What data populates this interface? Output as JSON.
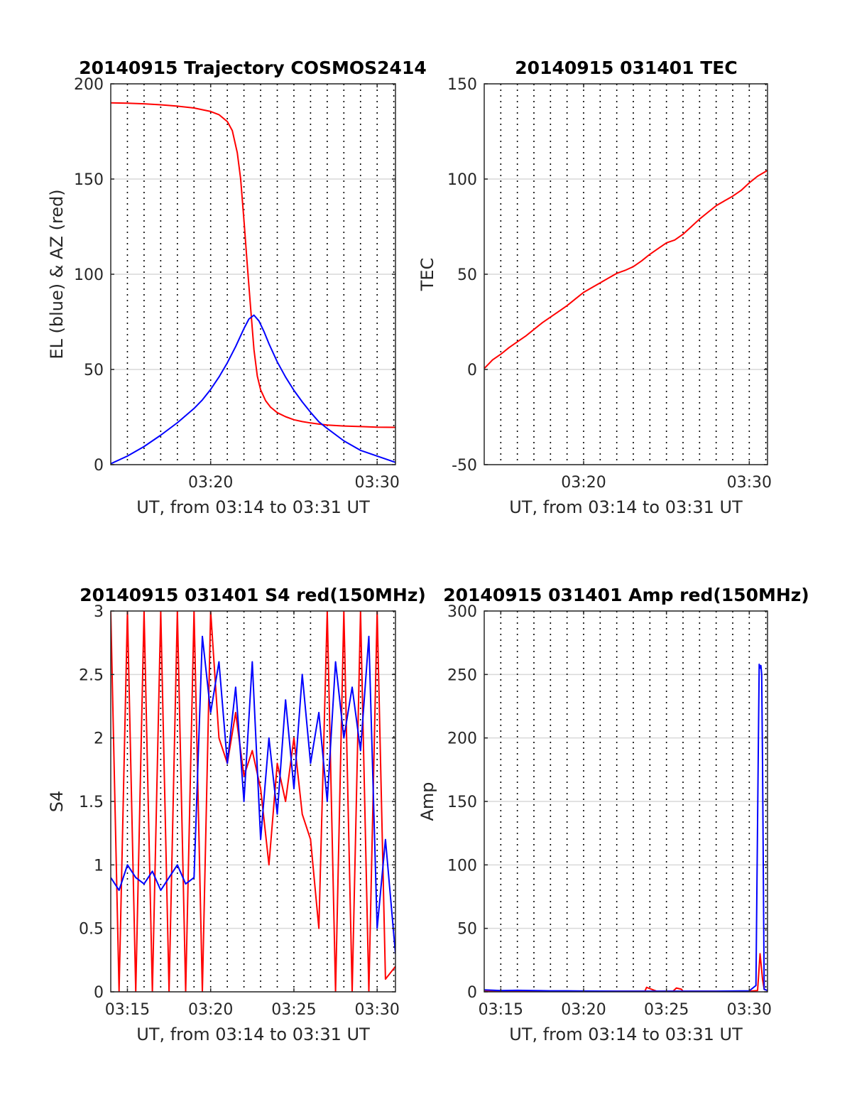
{
  "colors": {
    "red": "#ff0000",
    "blue": "#0000ff",
    "grid": "#d9d9d9",
    "axis": "#262626"
  },
  "chart_data": [
    {
      "type": "line",
      "title": "20140915 Trajectory COSMOS2414",
      "xlabel": "UT, from 03:14 to 03:31 UT",
      "ylabel": "EL (blue) & AZ (red)",
      "xlim": [
        14,
        31.1
      ],
      "ylim": [
        0,
        200
      ],
      "xticks": [
        20,
        30
      ],
      "xtick_labels": [
        "03:20",
        "03:30"
      ],
      "yticks": [
        0,
        50,
        100,
        150,
        200
      ],
      "ytick_labels": [
        "0",
        "50",
        "100",
        "150",
        "200"
      ],
      "grid": "horizontal solid, vertical dotted every 1 min",
      "series": [
        {
          "color": "red",
          "x": [
            14.0,
            15.0,
            16.0,
            17.0,
            18.0,
            19.0,
            20.0,
            20.5,
            21.0,
            21.3,
            21.6,
            21.8,
            22.0,
            22.2,
            22.4,
            22.6,
            22.8,
            23.0,
            23.3,
            23.6,
            24.0,
            24.5,
            25.0,
            25.5,
            26.0,
            26.5,
            27.0,
            28.0,
            29.0,
            30.0,
            31.1
          ],
          "y": [
            190.0,
            189.8,
            189.5,
            189.0,
            188.3,
            187.3,
            185.5,
            183.8,
            180.2,
            175.4,
            163.8,
            150.2,
            128.4,
            104.8,
            82.3,
            60.4,
            46.5,
            39.3,
            33.6,
            30.2,
            27.3,
            25.2,
            23.6,
            22.6,
            21.9,
            21.3,
            20.8,
            20.3,
            20.0,
            19.7,
            19.6
          ]
        },
        {
          "color": "blue",
          "x": [
            14.0,
            15.0,
            16.0,
            17.0,
            18.0,
            19.0,
            19.5,
            20.0,
            20.5,
            21.0,
            21.5,
            22.0,
            22.3,
            22.6,
            22.9,
            23.2,
            23.5,
            24.0,
            24.5,
            25.0,
            25.5,
            26.0,
            26.5,
            27.0,
            28.0,
            29.0,
            30.0,
            31.1
          ],
          "y": [
            0.5,
            4.5,
            9.5,
            15.5,
            22.0,
            29.5,
            34.0,
            39.5,
            46.0,
            53.5,
            62.0,
            71.5,
            76.5,
            78.5,
            75.5,
            70.0,
            63.5,
            54.0,
            46.0,
            39.0,
            33.0,
            27.5,
            22.5,
            19.0,
            12.5,
            7.5,
            4.5,
            1.2
          ]
        }
      ]
    },
    {
      "type": "line",
      "title": "20140915 031401 TEC",
      "xlabel": "UT, from 03:14 to 03:31 UT",
      "ylabel": "TEC",
      "xlim": [
        14,
        31.1
      ],
      "ylim": [
        -50,
        150
      ],
      "xticks": [
        20,
        30
      ],
      "xtick_labels": [
        "03:20",
        "03:30"
      ],
      "yticks": [
        -50,
        0,
        50,
        100,
        150
      ],
      "ytick_labels": [
        "-50",
        "0",
        "50",
        "100",
        "150"
      ],
      "grid": "horizontal solid, vertical dotted every 1 min",
      "series": [
        {
          "color": "red",
          "x": [
            14.0,
            14.5,
            15.0,
            15.5,
            16.0,
            16.5,
            17.0,
            17.5,
            18.0,
            18.5,
            19.0,
            19.5,
            20.0,
            20.5,
            21.0,
            21.5,
            22.0,
            22.5,
            23.0,
            23.5,
            24.0,
            24.5,
            25.0,
            25.5,
            26.0,
            26.5,
            27.0,
            27.5,
            28.0,
            28.5,
            29.0,
            29.5,
            30.0,
            30.5,
            31.1
          ],
          "y": [
            0.5,
            5.0,
            8.0,
            11.5,
            14.5,
            17.5,
            21.0,
            24.5,
            27.5,
            30.5,
            33.5,
            37.0,
            40.5,
            43.0,
            45.5,
            48.0,
            50.5,
            52.0,
            54.0,
            57.0,
            60.5,
            63.5,
            66.5,
            68.0,
            71.0,
            75.0,
            79.0,
            82.5,
            86.0,
            88.5,
            91.0,
            94.0,
            98.0,
            101.5,
            104.5
          ]
        }
      ]
    },
    {
      "type": "line",
      "title": "20140915 031401 S4 red(150MHz)",
      "xlabel": "UT, from 03:14 to 03:31 UT",
      "ylabel": "S4",
      "xlim": [
        14,
        31.1
      ],
      "ylim": [
        0,
        3
      ],
      "xticks": [
        15,
        20,
        25,
        30
      ],
      "xtick_labels": [
        "03:15",
        "03:20",
        "03:25",
        "03:30"
      ],
      "yticks": [
        0,
        0.5,
        1,
        1.5,
        2,
        2.5,
        3
      ],
      "ytick_labels": [
        "0",
        "0.5",
        "1",
        "1.5",
        "2",
        "2.5",
        "3"
      ],
      "grid": "horizontal solid, vertical dotted every 1 min",
      "series": [
        {
          "color": "red",
          "x": [
            14.0,
            14.5,
            15.0,
            15.5,
            16.0,
            16.5,
            17.0,
            17.5,
            18.0,
            18.5,
            19.0,
            19.5,
            20.0,
            20.5,
            21.0,
            21.5,
            22.0,
            22.5,
            23.0,
            23.5,
            24.0,
            24.5,
            25.0,
            25.5,
            26.0,
            26.5,
            27.0,
            27.5,
            28.0,
            28.5,
            29.0,
            29.5,
            30.0,
            30.5,
            31.1
          ],
          "y": [
            3,
            0,
            3,
            0,
            3,
            0,
            3,
            0,
            3,
            0,
            3,
            0,
            3,
            2.0,
            1.8,
            2.2,
            1.7,
            1.9,
            1.6,
            1.0,
            1.8,
            1.5,
            2.0,
            1.4,
            1.2,
            0.5,
            3,
            0,
            3,
            0,
            3,
            0,
            3,
            0.1,
            0.2
          ]
        },
        {
          "color": "blue",
          "x": [
            14.0,
            14.5,
            15.0,
            15.5,
            16.0,
            16.5,
            17.0,
            17.5,
            18.0,
            18.5,
            19.0,
            19.5,
            20.0,
            20.5,
            21.0,
            21.5,
            22.0,
            22.5,
            23.0,
            23.5,
            24.0,
            24.5,
            25.0,
            25.5,
            26.0,
            26.5,
            27.0,
            27.5,
            28.0,
            28.5,
            29.0,
            29.5,
            30.0,
            30.5,
            31.1
          ],
          "y": [
            0.9,
            0.8,
            1.0,
            0.9,
            0.85,
            0.95,
            0.8,
            0.9,
            1.0,
            0.85,
            0.9,
            2.8,
            2.2,
            2.6,
            1.8,
            2.4,
            1.5,
            2.6,
            1.2,
            2.0,
            1.4,
            2.3,
            1.6,
            2.5,
            1.8,
            2.2,
            1.5,
            2.6,
            2.0,
            2.4,
            1.9,
            2.8,
            0.5,
            1.2,
            0.3
          ]
        }
      ]
    },
    {
      "type": "line",
      "title": "20140915 031401 Amp red(150MHz)",
      "xlabel": "UT, from 03:14 to 03:31 UT",
      "ylabel": "Amp",
      "xlim": [
        14,
        31.1
      ],
      "ylim": [
        0,
        300
      ],
      "xticks": [
        15,
        20,
        25,
        30
      ],
      "xtick_labels": [
        "03:15",
        "03:20",
        "03:25",
        "03:30"
      ],
      "yticks": [
        0,
        50,
        100,
        150,
        200,
        250,
        300
      ],
      "ytick_labels": [
        "0",
        "50",
        "100",
        "150",
        "200",
        "250",
        "300"
      ],
      "grid": "horizontal solid, vertical dotted every 1 min",
      "series": [
        {
          "color": "red",
          "x": [
            14.0,
            23.7,
            23.8,
            24.0,
            24.4,
            25.4,
            25.6,
            25.9,
            26.0,
            30.0,
            30.5,
            30.65,
            30.8,
            30.9,
            31.1
          ],
          "y": [
            0.5,
            0.5,
            3.5,
            2.5,
            0.5,
            0.5,
            3.0,
            2.0,
            0.5,
            0.5,
            1.0,
            30.0,
            10.0,
            2.0,
            1.0
          ]
        },
        {
          "color": "blue",
          "x": [
            14.0,
            15.0,
            16.0,
            17.0,
            18.0,
            19.0,
            20.0,
            22.0,
            24.0,
            26.0,
            28.0,
            30.0,
            30.4,
            30.55,
            30.6,
            30.65,
            30.7,
            30.75,
            30.8,
            30.9,
            31.1
          ],
          "y": [
            1.5,
            1.0,
            1.2,
            1.0,
            0.8,
            0.8,
            0.6,
            0.5,
            0.5,
            0.5,
            0.5,
            0.8,
            5.0,
            200,
            258,
            255,
            257,
            250,
            180,
            2.0,
            1.0
          ]
        }
      ]
    }
  ]
}
